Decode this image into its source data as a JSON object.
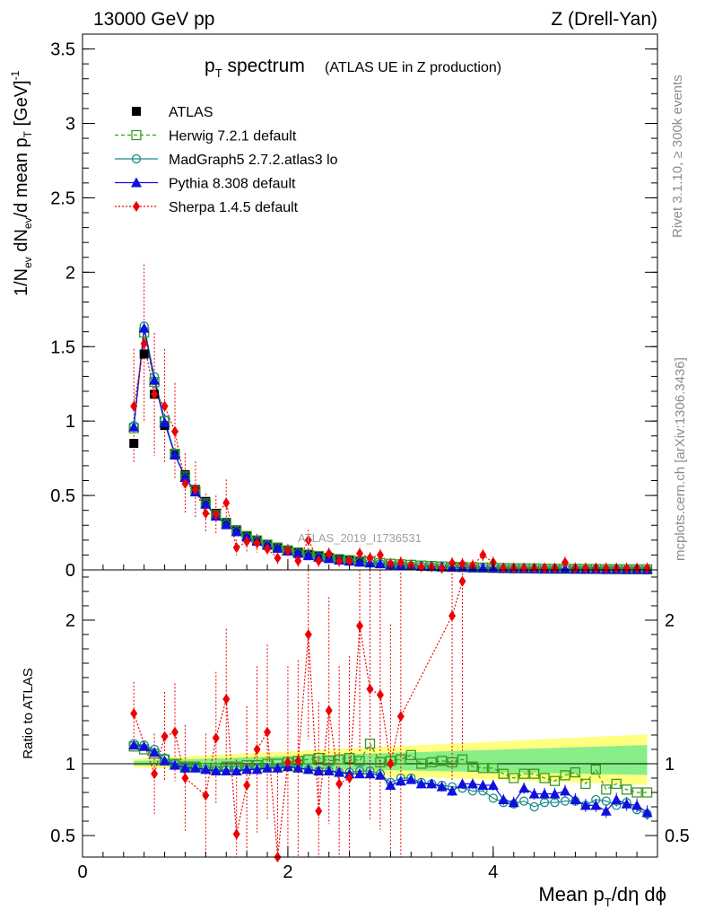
{
  "header": {
    "left": "13000 GeV pp",
    "right": "Z (Drell-Yan)"
  },
  "title": {
    "main_p": "p",
    "main_sub": "T",
    "main_rest": " spectrum",
    "detail": "(ATLAS UE in Z production)"
  },
  "watermark": "ATLAS_2019_I1736531",
  "side_labels": {
    "rivet": "Rivet 3.1.10, ≥ 300k events",
    "mcplots": "mcplots.cern.ch [arXiv:1306.3436]"
  },
  "axes": {
    "ylabel_main": "1/N",
    "ylabel_ev": "ev",
    "ylabel_mid": " dN",
    "ylabel_ev2": "ev",
    "ylabel_rest": "/d mean p",
    "ylabel_T": "T",
    "ylabel_unit": " [GeV]",
    "ylabel_exp": "-1",
    "ylabel_ratio": "Ratio to ATLAS",
    "xlabel_a": "Mean p",
    "xlabel_T": "T",
    "xlabel_b": "/dη dϕ"
  },
  "legend": [
    {
      "key": "atlas",
      "label": "ATLAS"
    },
    {
      "key": "herwig",
      "label": "Herwig 7.2.1 default"
    },
    {
      "key": "madgraph",
      "label": "MadGraph5 2.7.2.atlas3 lo"
    },
    {
      "key": "pythia",
      "label": "Pythia 8.308 default"
    },
    {
      "key": "sherpa",
      "label": "Sherpa 1.4.5 default"
    }
  ],
  "colors": {
    "atlas": "#000000",
    "herwig": "#3a9a1e",
    "madgraph": "#1a8a8a",
    "pythia": "#1010dd",
    "sherpa": "#ee0000",
    "band_yellow": "#ffff80",
    "band_green": "#88ee88"
  },
  "chart_data": {
    "type": "line",
    "title": "pT spectrum (ATLAS UE in Z production)",
    "xlabel": "Mean pT/dη dϕ",
    "ylabel": "1/Nev dNev/d mean pT [GeV]^-1",
    "xlim": [
      0,
      5.6
    ],
    "ylim": [
      0,
      3.6
    ],
    "ratio_ylim": [
      0.35,
      2.35
    ],
    "x_ticks": [
      0,
      2,
      4
    ],
    "y_ticks": [
      0,
      0.5,
      1,
      1.5,
      2,
      2.5,
      3,
      3.5
    ],
    "ratio_ticks": [
      0.5,
      1,
      2
    ],
    "x": [
      0.5,
      0.6,
      0.7,
      0.8,
      0.9,
      1.0,
      1.1,
      1.2,
      1.3,
      1.4,
      1.5,
      1.6,
      1.7,
      1.8,
      1.9,
      2.0,
      2.1,
      2.2,
      2.3,
      2.4,
      2.5,
      2.6,
      2.7,
      2.8,
      2.9,
      3.0,
      3.1,
      3.2,
      3.3,
      3.4,
      3.5,
      3.6,
      3.7,
      3.8,
      3.9,
      4.0,
      4.1,
      4.2,
      4.3,
      4.4,
      4.5,
      4.6,
      4.7,
      4.8,
      4.9,
      5.0,
      5.1,
      5.2,
      5.3,
      5.4,
      5.5
    ],
    "series": [
      {
        "name": "ATLAS",
        "values": [
          0.85,
          1.45,
          1.18,
          0.97,
          0.78,
          0.64,
          0.54,
          0.46,
          0.38,
          0.32,
          0.27,
          0.23,
          0.2,
          0.17,
          0.15,
          0.13,
          0.115,
          0.1,
          0.09,
          0.08,
          0.07,
          0.063,
          0.056,
          0.05,
          0.045,
          0.04,
          0.036,
          0.032,
          0.029,
          0.026,
          0.023,
          0.021,
          0.019,
          0.017,
          0.016,
          0.014,
          0.013,
          0.012,
          0.011,
          0.01,
          0.009,
          0.0085,
          0.008,
          0.0075,
          0.007,
          0.0065,
          0.006,
          0.0055,
          0.005,
          0.0048,
          0.0045
        ]
      },
      {
        "name": "Herwig 7.2.1 default",
        "ratio": [
          1.12,
          1.1,
          1.07,
          1.03,
          1.0,
          0.98,
          0.98,
          0.97,
          0.97,
          0.98,
          0.98,
          0.99,
          0.99,
          1.0,
          1.0,
          1.01,
          1.02,
          1.03,
          1.04,
          1.02,
          1.03,
          1.04,
          1.02,
          1.14,
          1.01,
          1.02,
          1.03,
          1.06,
          1.0,
          1.01,
          1.02,
          1.01,
          1.03,
          0.98,
          0.97,
          0.97,
          0.93,
          0.9,
          0.93,
          0.93,
          0.9,
          0.88,
          0.92,
          0.94,
          0.86,
          0.96,
          0.82,
          0.86,
          0.82,
          0.8,
          0.8
        ]
      },
      {
        "name": "MadGraph5 2.7.2.atlas3 lo",
        "ratio": [
          1.14,
          1.13,
          1.1,
          1.04,
          1.0,
          0.97,
          0.97,
          0.96,
          0.96,
          0.96,
          0.96,
          0.96,
          0.97,
          0.97,
          0.97,
          0.98,
          0.97,
          0.96,
          0.95,
          0.95,
          0.94,
          0.94,
          0.95,
          0.95,
          0.93,
          0.87,
          0.9,
          0.9,
          0.87,
          0.86,
          0.85,
          0.84,
          0.83,
          0.81,
          0.81,
          0.76,
          0.73,
          0.72,
          0.74,
          0.7,
          0.73,
          0.73,
          0.74,
          0.74,
          0.71,
          0.75,
          0.74,
          0.71,
          0.73,
          0.68,
          0.65
        ]
      },
      {
        "name": "Pythia 8.308 default",
        "ratio": [
          1.13,
          1.12,
          1.08,
          1.02,
          0.99,
          0.97,
          0.97,
          0.96,
          0.95,
          0.95,
          0.95,
          0.96,
          0.96,
          0.97,
          0.97,
          0.98,
          0.97,
          0.96,
          0.95,
          0.95,
          0.94,
          0.93,
          0.93,
          0.93,
          0.92,
          0.85,
          0.88,
          0.89,
          0.86,
          0.86,
          0.84,
          0.81,
          0.86,
          0.86,
          0.85,
          0.85,
          0.75,
          0.73,
          0.83,
          0.79,
          0.79,
          0.79,
          0.81,
          0.75,
          0.71,
          0.71,
          0.67,
          0.75,
          0.72,
          0.71,
          0.66
        ]
      },
      {
        "name": "Sherpa 1.4.5 default",
        "values": [
          1.1,
          1.52,
          1.18,
          1.1,
          0.93,
          0.58,
          0.54,
          0.38,
          0.37,
          0.45,
          0.15,
          0.19,
          0.18,
          0.14,
          0.08,
          0.13,
          0.06,
          0.2,
          0.06,
          0.11,
          0.06,
          0.06,
          0.11,
          0.08,
          0.1,
          0.04,
          0.05,
          0.03,
          0.02,
          0.02,
          0.01,
          0.045,
          0.04,
          0.03,
          0.1,
          0.05,
          0.01,
          0.01,
          0.01,
          0.01,
          0.01,
          0.01,
          0.05,
          0.01,
          0.01,
          0.01,
          0.01,
          0.01,
          0.01,
          0.01,
          0.01
        ],
        "ratio": [
          1.35,
          null,
          0.93,
          1.19,
          1.22,
          0.9,
          null,
          0.78,
          1.18,
          1.45,
          0.51,
          0.85,
          1.1,
          1.22,
          0.35,
          1.01,
          1.02,
          1.9,
          0.67,
          1.37,
          0.86,
          0.9,
          1.96,
          1.52,
          1.48,
          1.0,
          1.33,
          null,
          null,
          null,
          null,
          2.03,
          2.27,
          null,
          null,
          null,
          null,
          null,
          null,
          null,
          null,
          null,
          null,
          null,
          null,
          null,
          null,
          null,
          null,
          null,
          null
        ]
      }
    ],
    "sherpa_ratio_x_shown": [
      0.5,
      0.7,
      0.8,
      0.9,
      1.0,
      1.2,
      1.3,
      1.4,
      1.5,
      1.6,
      1.7,
      1.8,
      1.9,
      2.0,
      2.1,
      2.2,
      2.3,
      2.4,
      2.5,
      2.6,
      2.7,
      2.8,
      2.9,
      3.0,
      3.1,
      3.6,
      3.7
    ],
    "legend_position": "top-left"
  }
}
